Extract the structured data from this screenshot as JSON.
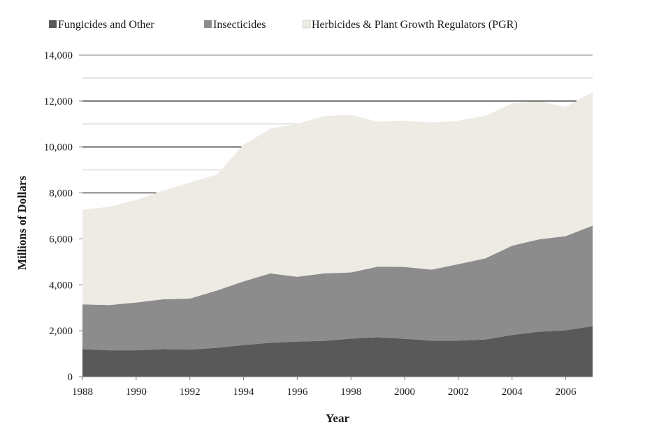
{
  "chart_data": {
    "type": "area",
    "stacked": true,
    "title": "",
    "xlabel": "Year",
    "ylabel": "Millions of Dollars",
    "xlim": [
      1988,
      2007
    ],
    "ylim": [
      0,
      14000
    ],
    "x_ticks": [
      "1988",
      "1990",
      "1992",
      "1994",
      "1996",
      "1998",
      "2000",
      "2002",
      "2004",
      "2006"
    ],
    "y_ticks": [
      "0",
      "2,000",
      "4,000",
      "6,000",
      "8,000",
      "10,000",
      "12,000",
      "14,000"
    ],
    "legend_position": "top",
    "grid": "horizontal",
    "x": [
      1988,
      1989,
      1990,
      1991,
      1992,
      1993,
      1994,
      1995,
      1996,
      1997,
      1998,
      1999,
      2000,
      2001,
      2002,
      2003,
      2004,
      2005,
      2006,
      2007
    ],
    "series": [
      {
        "name": "Fungicides and Other",
        "color": "#595959",
        "values": [
          1200,
          1150,
          1150,
          1200,
          1180,
          1260,
          1380,
          1480,
          1530,
          1560,
          1660,
          1720,
          1650,
          1570,
          1570,
          1620,
          1820,
          1960,
          2020,
          2200
        ]
      },
      {
        "name": "Insecticides",
        "color": "#8c8c8c",
        "values": [
          1950,
          1970,
          2080,
          2170,
          2220,
          2490,
          2770,
          3020,
          2820,
          2940,
          2880,
          3070,
          3130,
          3090,
          3330,
          3530,
          3880,
          4020,
          4100,
          4380
        ]
      },
      {
        "name": "Herbicides & Plant Growth Regulators (PGR)",
        "color": "#eeebe4",
        "values": [
          4120,
          4280,
          4470,
          4730,
          5050,
          5050,
          5950,
          6300,
          6650,
          6850,
          6860,
          6310,
          6370,
          6400,
          6250,
          6200,
          6200,
          6020,
          5620,
          5820
        ]
      }
    ]
  }
}
